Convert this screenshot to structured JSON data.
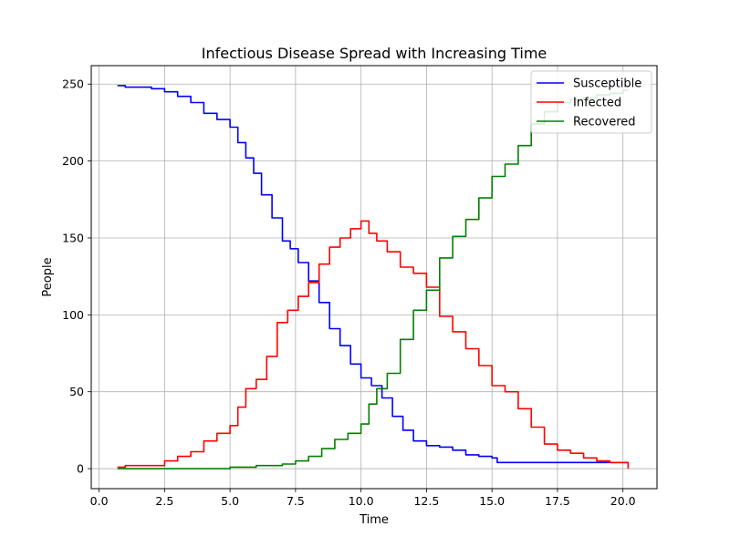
{
  "chart_data": {
    "type": "line",
    "title": "Infectious Disease Spread with Increasing Time",
    "xlabel": "Time",
    "ylabel": "People",
    "xlim": [
      -0.3,
      21.3
    ],
    "ylim": [
      -13,
      262
    ],
    "xticks": [
      0.0,
      2.5,
      5.0,
      7.5,
      10.0,
      12.5,
      15.0,
      17.5,
      20.0
    ],
    "xtick_labels": [
      "0.0",
      "2.5",
      "5.0",
      "7.5",
      "10.0",
      "12.5",
      "15.0",
      "17.5",
      "20.0"
    ],
    "yticks": [
      0,
      50,
      100,
      150,
      200,
      250
    ],
    "ytick_labels": [
      "0",
      "50",
      "100",
      "150",
      "200",
      "250"
    ],
    "grid": true,
    "legend_position": "top-right",
    "series": [
      {
        "name": "Susceptible",
        "color": "#0000ff",
        "points": [
          [
            0.7,
            249
          ],
          [
            1.0,
            248
          ],
          [
            2.0,
            247
          ],
          [
            2.5,
            245
          ],
          [
            3.0,
            242
          ],
          [
            3.5,
            238
          ],
          [
            4.0,
            231
          ],
          [
            4.5,
            227
          ],
          [
            5.0,
            222
          ],
          [
            5.3,
            212
          ],
          [
            5.6,
            202
          ],
          [
            5.9,
            192
          ],
          [
            6.2,
            178
          ],
          [
            6.6,
            163
          ],
          [
            7.0,
            148
          ],
          [
            7.3,
            143
          ],
          [
            7.6,
            134
          ],
          [
            8.0,
            122
          ],
          [
            8.4,
            108
          ],
          [
            8.8,
            91
          ],
          [
            9.2,
            80
          ],
          [
            9.6,
            68
          ],
          [
            10.0,
            59
          ],
          [
            10.4,
            54
          ],
          [
            10.8,
            46
          ],
          [
            11.2,
            34
          ],
          [
            11.6,
            25
          ],
          [
            12.0,
            18
          ],
          [
            12.5,
            15
          ],
          [
            13.0,
            14
          ],
          [
            13.5,
            12
          ],
          [
            14.0,
            9
          ],
          [
            14.5,
            8
          ],
          [
            15.0,
            7
          ],
          [
            15.2,
            4
          ],
          [
            16.0,
            4
          ],
          [
            17.5,
            4
          ],
          [
            19.0,
            4
          ],
          [
            20.2,
            4
          ]
        ]
      },
      {
        "name": "Infected",
        "color": "#ff0000",
        "points": [
          [
            0.7,
            1
          ],
          [
            1.0,
            2
          ],
          [
            2.0,
            2
          ],
          [
            2.5,
            5
          ],
          [
            3.0,
            8
          ],
          [
            3.5,
            11
          ],
          [
            4.0,
            18
          ],
          [
            4.5,
            23
          ],
          [
            5.0,
            28
          ],
          [
            5.3,
            40
          ],
          [
            5.6,
            52
          ],
          [
            6.0,
            58
          ],
          [
            6.4,
            73
          ],
          [
            6.8,
            95
          ],
          [
            7.2,
            103
          ],
          [
            7.6,
            112
          ],
          [
            8.0,
            121
          ],
          [
            8.4,
            133
          ],
          [
            8.8,
            144
          ],
          [
            9.2,
            150
          ],
          [
            9.6,
            156
          ],
          [
            10.0,
            161
          ],
          [
            10.3,
            153
          ],
          [
            10.6,
            148
          ],
          [
            11.0,
            141
          ],
          [
            11.5,
            131
          ],
          [
            12.0,
            127
          ],
          [
            12.5,
            118
          ],
          [
            13.0,
            99
          ],
          [
            13.5,
            89
          ],
          [
            14.0,
            78
          ],
          [
            14.5,
            67
          ],
          [
            15.0,
            54
          ],
          [
            15.5,
            50
          ],
          [
            16.0,
            39
          ],
          [
            16.5,
            27
          ],
          [
            17.0,
            16
          ],
          [
            17.5,
            12
          ],
          [
            18.0,
            10
          ],
          [
            18.5,
            7
          ],
          [
            19.0,
            5
          ],
          [
            19.5,
            4
          ],
          [
            20.0,
            4
          ],
          [
            20.2,
            0
          ]
        ]
      },
      {
        "name": "Recovered",
        "color": "#008000",
        "points": [
          [
            0.7,
            0
          ],
          [
            2.0,
            0
          ],
          [
            3.0,
            0
          ],
          [
            4.0,
            0
          ],
          [
            5.0,
            1
          ],
          [
            6.0,
            2
          ],
          [
            7.0,
            3
          ],
          [
            7.5,
            5
          ],
          [
            8.0,
            8
          ],
          [
            8.5,
            13
          ],
          [
            9.0,
            19
          ],
          [
            9.5,
            23
          ],
          [
            10.0,
            29
          ],
          [
            10.3,
            42
          ],
          [
            10.6,
            52
          ],
          [
            11.0,
            62
          ],
          [
            11.5,
            84
          ],
          [
            12.0,
            103
          ],
          [
            12.5,
            116
          ],
          [
            13.0,
            137
          ],
          [
            13.5,
            151
          ],
          [
            14.0,
            162
          ],
          [
            14.5,
            176
          ],
          [
            15.0,
            190
          ],
          [
            15.5,
            198
          ],
          [
            16.0,
            210
          ],
          [
            16.5,
            224
          ],
          [
            17.0,
            232
          ],
          [
            17.5,
            238
          ],
          [
            18.0,
            240
          ],
          [
            18.5,
            241
          ],
          [
            19.0,
            243
          ],
          [
            19.5,
            244
          ],
          [
            20.0,
            246
          ],
          [
            20.2,
            246
          ]
        ]
      }
    ]
  }
}
